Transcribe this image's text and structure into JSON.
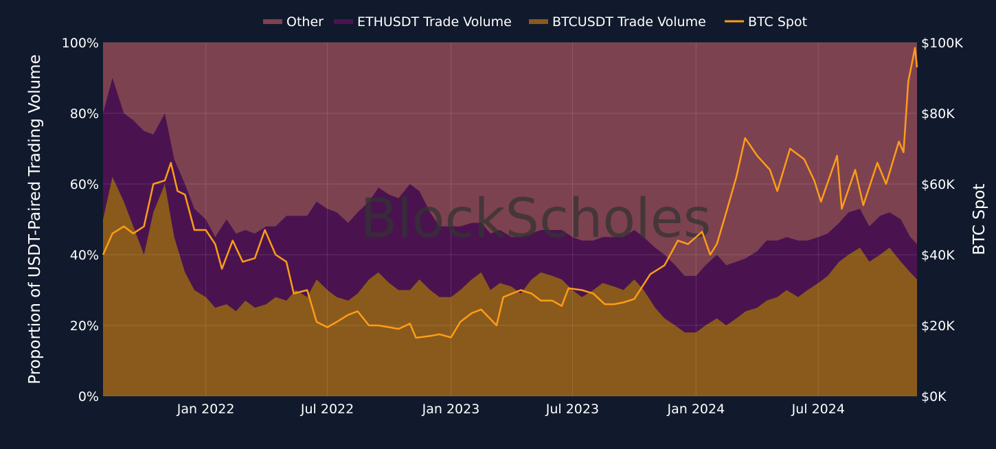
{
  "colors": {
    "background": "#111a2c",
    "other": "#7d4250",
    "eth": "#4a1350",
    "btc_volume": "#8a5a1c",
    "btc_spot": "#ff9d16",
    "text": "#ffffff",
    "grid": "#5a4a5a",
    "watermark": "#3a3a3a"
  },
  "watermark": "BlockScholes",
  "chart_data": {
    "type": "area",
    "legend_position": "top-center",
    "legend": [
      {
        "name": "Other",
        "color_key": "other",
        "kind": "area"
      },
      {
        "name": "ETHUSDT Trade Volume",
        "color_key": "eth",
        "kind": "area"
      },
      {
        "name": "BTCUSDT Trade Volume",
        "color_key": "btc_volume",
        "kind": "area"
      },
      {
        "name": "BTC Spot",
        "color_key": "btc_spot",
        "kind": "line"
      }
    ],
    "x_range": [
      "2021-08-01",
      "2024-11-25"
    ],
    "x_ticks": [
      {
        "date": "2022-01-01",
        "label": "Jan 2022"
      },
      {
        "date": "2022-07-01",
        "label": "Jul 2022"
      },
      {
        "date": "2023-01-01",
        "label": "Jan 2023"
      },
      {
        "date": "2023-07-01",
        "label": "Jul 2023"
      },
      {
        "date": "2024-01-01",
        "label": "Jan 2024"
      },
      {
        "date": "2024-07-01",
        "label": "Jul 2024"
      }
    ],
    "ylabel_left": "Proportion of USDT-Paired Trading Volume",
    "ylabel_right": "BTC Spot",
    "y_left_range": [
      0,
      100
    ],
    "y_left_ticks": [
      {
        "value": 0,
        "label": "0%"
      },
      {
        "value": 20,
        "label": "20%"
      },
      {
        "value": 40,
        "label": "40%"
      },
      {
        "value": 60,
        "label": "60%"
      },
      {
        "value": 80,
        "label": "80%"
      },
      {
        "value": 100,
        "label": "100%"
      }
    ],
    "y_right_range": [
      0,
      100000
    ],
    "y_right_ticks": [
      {
        "value": 0,
        "label": "$0K"
      },
      {
        "value": 20000,
        "label": "$20K"
      },
      {
        "value": 40000,
        "label": "$40K"
      },
      {
        "value": 60000,
        "label": "$60K"
      },
      {
        "value": 80000,
        "label": "$80K"
      },
      {
        "value": 100000,
        "label": "$100K"
      }
    ],
    "grid": true,
    "series": [
      {
        "name": "BTCUSDT Trade Volume",
        "unit": "%",
        "points": [
          [
            "2021-08-01",
            50
          ],
          [
            "2021-08-15",
            62
          ],
          [
            "2021-09-01",
            55
          ],
          [
            "2021-09-15",
            48
          ],
          [
            "2021-10-01",
            40
          ],
          [
            "2021-10-15",
            52
          ],
          [
            "2021-11-01",
            60
          ],
          [
            "2021-11-15",
            45
          ],
          [
            "2021-12-01",
            35
          ],
          [
            "2021-12-15",
            30
          ],
          [
            "2022-01-01",
            28
          ],
          [
            "2022-01-15",
            25
          ],
          [
            "2022-02-01",
            26
          ],
          [
            "2022-02-15",
            24
          ],
          [
            "2022-03-01",
            27
          ],
          [
            "2022-03-15",
            25
          ],
          [
            "2022-04-01",
            26
          ],
          [
            "2022-04-15",
            28
          ],
          [
            "2022-05-01",
            27
          ],
          [
            "2022-05-15",
            30
          ],
          [
            "2022-06-01",
            28
          ],
          [
            "2022-06-15",
            33
          ],
          [
            "2022-07-01",
            30
          ],
          [
            "2022-07-15",
            28
          ],
          [
            "2022-08-01",
            27
          ],
          [
            "2022-08-15",
            29
          ],
          [
            "2022-09-01",
            33
          ],
          [
            "2022-09-15",
            35
          ],
          [
            "2022-10-01",
            32
          ],
          [
            "2022-10-15",
            30
          ],
          [
            "2022-11-01",
            30
          ],
          [
            "2022-11-15",
            33
          ],
          [
            "2022-12-01",
            30
          ],
          [
            "2022-12-15",
            28
          ],
          [
            "2023-01-01",
            28
          ],
          [
            "2023-01-15",
            30
          ],
          [
            "2023-02-01",
            33
          ],
          [
            "2023-02-15",
            35
          ],
          [
            "2023-03-01",
            30
          ],
          [
            "2023-03-15",
            32
          ],
          [
            "2023-04-01",
            31
          ],
          [
            "2023-04-15",
            29
          ],
          [
            "2023-05-01",
            33
          ],
          [
            "2023-05-15",
            35
          ],
          [
            "2023-06-01",
            34
          ],
          [
            "2023-06-15",
            33
          ],
          [
            "2023-07-01",
            30
          ],
          [
            "2023-07-15",
            28
          ],
          [
            "2023-08-01",
            30
          ],
          [
            "2023-08-15",
            32
          ],
          [
            "2023-09-01",
            31
          ],
          [
            "2023-09-15",
            30
          ],
          [
            "2023-10-01",
            33
          ],
          [
            "2023-10-15",
            30
          ],
          [
            "2023-11-01",
            25
          ],
          [
            "2023-11-15",
            22
          ],
          [
            "2023-12-01",
            20
          ],
          [
            "2023-12-15",
            18
          ],
          [
            "2024-01-01",
            18
          ],
          [
            "2024-01-15",
            20
          ],
          [
            "2024-02-01",
            22
          ],
          [
            "2024-02-15",
            20
          ],
          [
            "2024-03-01",
            22
          ],
          [
            "2024-03-15",
            24
          ],
          [
            "2024-04-01",
            25
          ],
          [
            "2024-04-15",
            27
          ],
          [
            "2024-05-01",
            28
          ],
          [
            "2024-05-15",
            30
          ],
          [
            "2024-06-01",
            28
          ],
          [
            "2024-06-15",
            30
          ],
          [
            "2024-07-01",
            32
          ],
          [
            "2024-07-15",
            34
          ],
          [
            "2024-08-01",
            38
          ],
          [
            "2024-08-15",
            40
          ],
          [
            "2024-09-01",
            42
          ],
          [
            "2024-09-15",
            38
          ],
          [
            "2024-10-01",
            40
          ],
          [
            "2024-10-15",
            42
          ],
          [
            "2024-11-01",
            38
          ],
          [
            "2024-11-15",
            35
          ],
          [
            "2024-11-25",
            33
          ]
        ]
      },
      {
        "name": "ETHUSDT Trade Volume",
        "unit": "%",
        "points": [
          [
            "2021-08-01",
            30
          ],
          [
            "2021-08-15",
            28
          ],
          [
            "2021-09-01",
            25
          ],
          [
            "2021-09-15",
            30
          ],
          [
            "2021-10-01",
            35
          ],
          [
            "2021-10-15",
            22
          ],
          [
            "2021-11-01",
            20
          ],
          [
            "2021-11-15",
            22
          ],
          [
            "2021-12-01",
            25
          ],
          [
            "2021-12-15",
            23
          ],
          [
            "2022-01-01",
            22
          ],
          [
            "2022-01-15",
            20
          ],
          [
            "2022-02-01",
            24
          ],
          [
            "2022-02-15",
            22
          ],
          [
            "2022-03-01",
            20
          ],
          [
            "2022-03-15",
            21
          ],
          [
            "2022-04-01",
            22
          ],
          [
            "2022-04-15",
            20
          ],
          [
            "2022-05-01",
            24
          ],
          [
            "2022-05-15",
            21
          ],
          [
            "2022-06-01",
            23
          ],
          [
            "2022-06-15",
            22
          ],
          [
            "2022-07-01",
            23
          ],
          [
            "2022-07-15",
            24
          ],
          [
            "2022-08-01",
            22
          ],
          [
            "2022-08-15",
            23
          ],
          [
            "2022-09-01",
            22
          ],
          [
            "2022-09-15",
            24
          ],
          [
            "2022-10-01",
            25
          ],
          [
            "2022-10-15",
            26
          ],
          [
            "2022-11-01",
            30
          ],
          [
            "2022-11-15",
            25
          ],
          [
            "2022-12-01",
            22
          ],
          [
            "2022-12-15",
            20
          ],
          [
            "2023-01-01",
            20
          ],
          [
            "2023-01-15",
            18
          ],
          [
            "2023-02-01",
            16
          ],
          [
            "2023-02-15",
            14
          ],
          [
            "2023-03-01",
            16
          ],
          [
            "2023-03-15",
            15
          ],
          [
            "2023-04-01",
            14
          ],
          [
            "2023-04-15",
            16
          ],
          [
            "2023-05-01",
            13
          ],
          [
            "2023-05-15",
            12
          ],
          [
            "2023-06-01",
            13
          ],
          [
            "2023-06-15",
            14
          ],
          [
            "2023-07-01",
            15
          ],
          [
            "2023-07-15",
            16
          ],
          [
            "2023-08-01",
            14
          ],
          [
            "2023-08-15",
            13
          ],
          [
            "2023-09-01",
            14
          ],
          [
            "2023-09-15",
            15
          ],
          [
            "2023-10-01",
            14
          ],
          [
            "2023-10-15",
            15
          ],
          [
            "2023-11-01",
            17
          ],
          [
            "2023-11-15",
            18
          ],
          [
            "2023-12-01",
            17
          ],
          [
            "2023-12-15",
            16
          ],
          [
            "2024-01-01",
            16
          ],
          [
            "2024-01-15",
            17
          ],
          [
            "2024-02-01",
            18
          ],
          [
            "2024-02-15",
            17
          ],
          [
            "2024-03-01",
            16
          ],
          [
            "2024-03-15",
            15
          ],
          [
            "2024-04-01",
            16
          ],
          [
            "2024-04-15",
            17
          ],
          [
            "2024-05-01",
            16
          ],
          [
            "2024-05-15",
            15
          ],
          [
            "2024-06-01",
            16
          ],
          [
            "2024-06-15",
            14
          ],
          [
            "2024-07-01",
            13
          ],
          [
            "2024-07-15",
            12
          ],
          [
            "2024-08-01",
            11
          ],
          [
            "2024-08-15",
            12
          ],
          [
            "2024-09-01",
            11
          ],
          [
            "2024-09-15",
            10
          ],
          [
            "2024-10-01",
            11
          ],
          [
            "2024-10-15",
            10
          ],
          [
            "2024-11-01",
            12
          ],
          [
            "2024-11-15",
            10
          ],
          [
            "2024-11-25",
            10
          ]
        ]
      },
      {
        "name": "Other",
        "unit": "%",
        "note_fill": "remainder to 100"
      },
      {
        "name": "BTC Spot",
        "unit": "USD",
        "points": [
          [
            "2021-08-01",
            40000
          ],
          [
            "2021-08-15",
            46000
          ],
          [
            "2021-09-01",
            48000
          ],
          [
            "2021-09-15",
            46000
          ],
          [
            "2021-10-01",
            48000
          ],
          [
            "2021-10-15",
            60000
          ],
          [
            "2021-11-01",
            61000
          ],
          [
            "2021-11-10",
            66000
          ],
          [
            "2021-11-20",
            58000
          ],
          [
            "2021-12-01",
            57000
          ],
          [
            "2021-12-15",
            47000
          ],
          [
            "2022-01-01",
            47000
          ],
          [
            "2022-01-15",
            43000
          ],
          [
            "2022-01-25",
            36000
          ],
          [
            "2022-02-10",
            44000
          ],
          [
            "2022-02-25",
            38000
          ],
          [
            "2022-03-15",
            39000
          ],
          [
            "2022-03-30",
            47000
          ],
          [
            "2022-04-15",
            40000
          ],
          [
            "2022-05-01",
            38000
          ],
          [
            "2022-05-12",
            29000
          ],
          [
            "2022-06-01",
            30000
          ],
          [
            "2022-06-15",
            21000
          ],
          [
            "2022-07-01",
            19500
          ],
          [
            "2022-07-15",
            21000
          ],
          [
            "2022-08-01",
            23000
          ],
          [
            "2022-08-15",
            24000
          ],
          [
            "2022-09-01",
            20000
          ],
          [
            "2022-09-15",
            20000
          ],
          [
            "2022-10-01",
            19500
          ],
          [
            "2022-10-15",
            19000
          ],
          [
            "2022-11-01",
            20500
          ],
          [
            "2022-11-10",
            16500
          ],
          [
            "2022-12-01",
            17000
          ],
          [
            "2022-12-15",
            17500
          ],
          [
            "2023-01-01",
            16600
          ],
          [
            "2023-01-15",
            21000
          ],
          [
            "2023-02-01",
            23500
          ],
          [
            "2023-02-15",
            24500
          ],
          [
            "2023-03-10",
            20000
          ],
          [
            "2023-03-20",
            28000
          ],
          [
            "2023-04-15",
            30000
          ],
          [
            "2023-05-01",
            29000
          ],
          [
            "2023-05-15",
            27000
          ],
          [
            "2023-06-01",
            27000
          ],
          [
            "2023-06-15",
            25500
          ],
          [
            "2023-06-25",
            30500
          ],
          [
            "2023-07-15",
            30000
          ],
          [
            "2023-08-01",
            29000
          ],
          [
            "2023-08-18",
            26000
          ],
          [
            "2023-09-01",
            26000
          ],
          [
            "2023-09-15",
            26500
          ],
          [
            "2023-10-01",
            27500
          ],
          [
            "2023-10-25",
            34500
          ],
          [
            "2023-11-15",
            37000
          ],
          [
            "2023-12-05",
            44000
          ],
          [
            "2023-12-20",
            43000
          ],
          [
            "2024-01-10",
            46500
          ],
          [
            "2024-01-22",
            40000
          ],
          [
            "2024-02-01",
            43000
          ],
          [
            "2024-02-15",
            52000
          ],
          [
            "2024-03-01",
            62000
          ],
          [
            "2024-03-14",
            73000
          ],
          [
            "2024-04-01",
            68000
          ],
          [
            "2024-04-20",
            64000
          ],
          [
            "2024-05-01",
            58000
          ],
          [
            "2024-05-20",
            70000
          ],
          [
            "2024-06-10",
            67000
          ],
          [
            "2024-06-25",
            61000
          ],
          [
            "2024-07-05",
            55000
          ],
          [
            "2024-07-29",
            68000
          ],
          [
            "2024-08-05",
            53000
          ],
          [
            "2024-08-25",
            64000
          ],
          [
            "2024-09-06",
            54000
          ],
          [
            "2024-09-27",
            66000
          ],
          [
            "2024-10-10",
            60000
          ],
          [
            "2024-10-29",
            72000
          ],
          [
            "2024-11-05",
            69000
          ],
          [
            "2024-11-12",
            89000
          ],
          [
            "2024-11-22",
            98500
          ],
          [
            "2024-11-25",
            93000
          ]
        ]
      }
    ]
  }
}
